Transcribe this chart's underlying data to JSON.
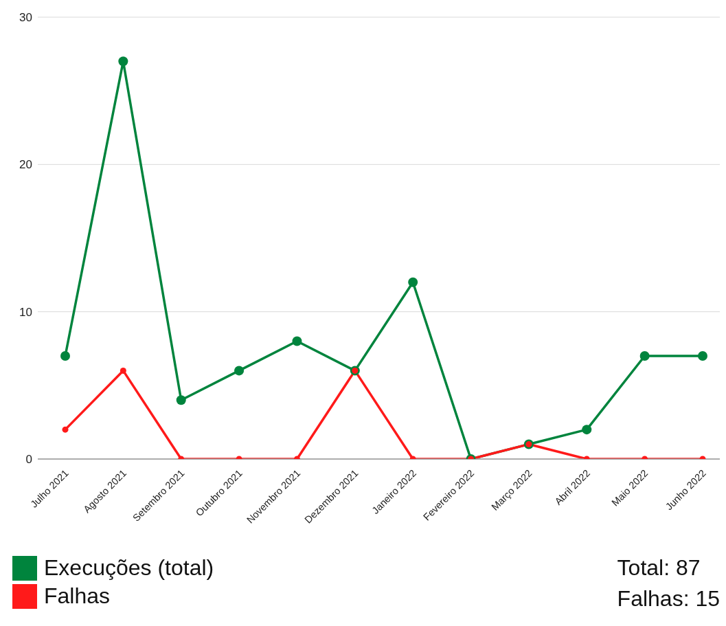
{
  "chart_data": {
    "type": "line",
    "categories": [
      "Julho 2021",
      "Agosto 2021",
      "Setembro 2021",
      "Outubro 2021",
      "Novembro 2021",
      "Dezembro 2021",
      "Janeiro 2022",
      "Fevereiro 2022",
      "Março 2022",
      "Abril 2022",
      "Maio 2022",
      "Junho 2022"
    ],
    "series": [
      {
        "name": "Execuções (total)",
        "color": "#00843d",
        "values": [
          7,
          27,
          4,
          6,
          8,
          6,
          12,
          0,
          1,
          2,
          7,
          7
        ]
      },
      {
        "name": "Falhas",
        "color": "#ff1a1a",
        "values": [
          2,
          6,
          0,
          0,
          0,
          6,
          0,
          0,
          1,
          0,
          0,
          0
        ]
      }
    ],
    "ylim": [
      0,
      30
    ],
    "yticks": [
      0,
      10,
      20,
      30
    ],
    "grid": "y",
    "legend": "bottom",
    "marker": "circle",
    "line_style": "solid",
    "annotations": [
      "Total: 87",
      "Falhas: 15"
    ]
  }
}
